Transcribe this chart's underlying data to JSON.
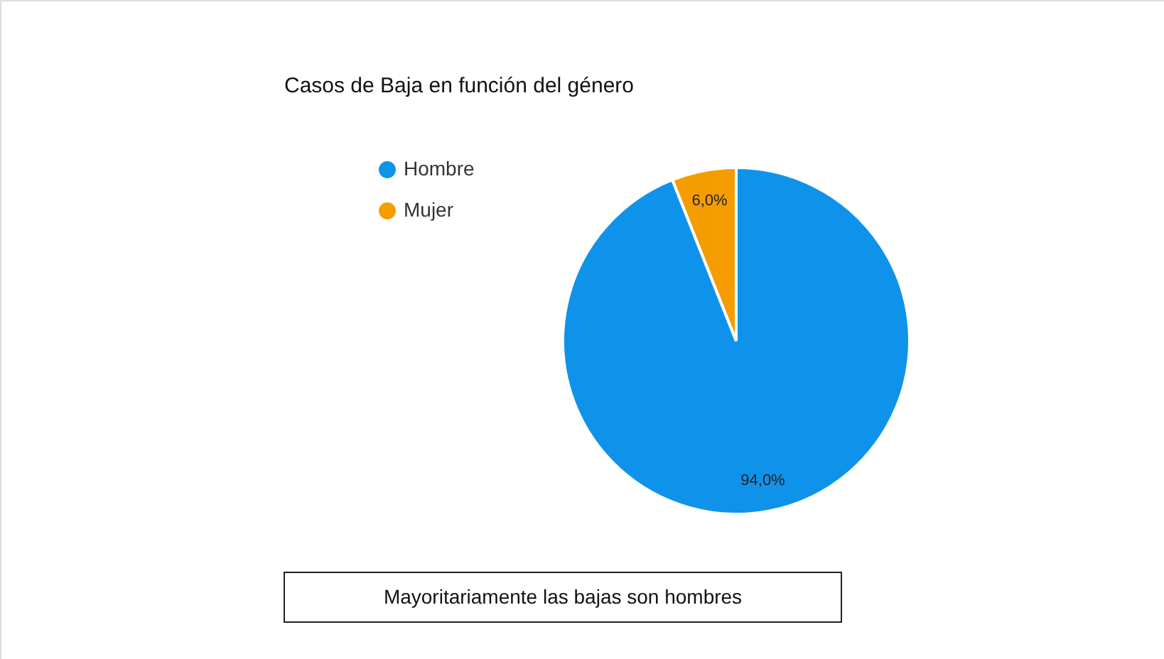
{
  "chart_data": {
    "type": "pie",
    "title": "Casos de Baja en función del género",
    "categories": [
      "Hombre",
      "Mujer"
    ],
    "values": [
      94.0,
      6.0
    ],
    "colors": [
      "#0f93ea",
      "#f59c00"
    ],
    "value_labels": [
      "94,0%",
      "6,0%"
    ],
    "legend": "top left",
    "annotations": [
      "Mayoritariamente las bajas son hombres"
    ]
  }
}
